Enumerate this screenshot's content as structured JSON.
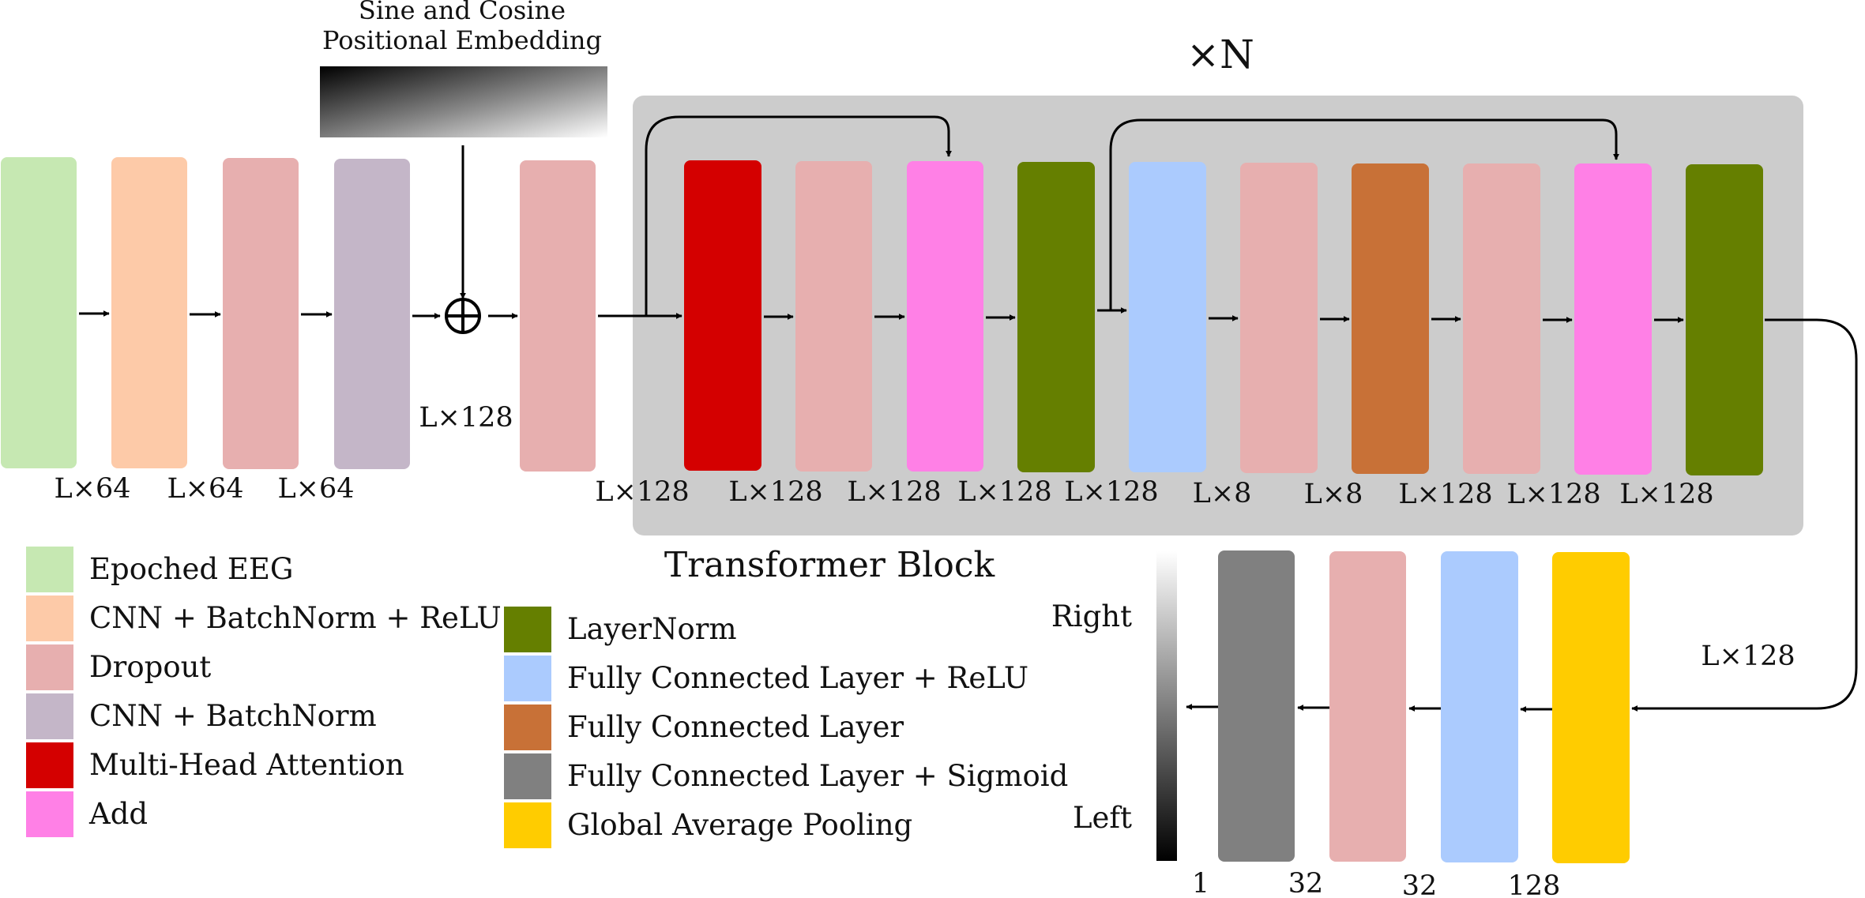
{
  "colors": {
    "epoched_eeg": "#c6e8b2",
    "cnn_bn_relu": "#fdcaa8",
    "dropout": "#e7afaf",
    "cnn_bn": "#c4b6c8",
    "mha": "#d40000",
    "add": "#ff80e6",
    "layernorm": "#657f00",
    "fc_relu": "#abcbfe",
    "fc": "#c87137",
    "fc_sigmoid": "#808080",
    "gap": "#ffcc00",
    "transformer_bg": "#cccccc",
    "arrow": "#000000"
  },
  "embedding": {
    "title_line1": "Sine and Cosine",
    "title_line2": "Positional Embedding"
  },
  "transformer": {
    "repeat_label": "×N",
    "block_label": "Transformer Block"
  },
  "dims": {
    "top": [
      "L×64",
      "L×64",
      "L×64",
      "L×128",
      "L×128",
      "L×128",
      "L×128",
      "L×128",
      "L×128",
      "L×8",
      "L×8",
      "L×128",
      "L×128",
      "L×128"
    ],
    "right": "L×128",
    "bottom": [
      "1",
      "32",
      "32",
      "128"
    ]
  },
  "output": {
    "right_label": "Right",
    "left_label": "Left"
  },
  "legend_left": [
    {
      "color": "epoched_eeg",
      "label": "Epoched EEG"
    },
    {
      "color": "cnn_bn_relu",
      "label": "CNN + BatchNorm + ReLU"
    },
    {
      "color": "dropout",
      "label": "Dropout"
    },
    {
      "color": "cnn_bn",
      "label": "CNN + BatchNorm"
    },
    {
      "color": "mha",
      "label": "Multi-Head Attention"
    },
    {
      "color": "add",
      "label": "Add"
    }
  ],
  "legend_right": [
    {
      "color": "layernorm",
      "label": "LayerNorm"
    },
    {
      "color": "fc_relu",
      "label": "Fully Connected Layer + ReLU"
    },
    {
      "color": "fc",
      "label": "Fully Connected Layer"
    },
    {
      "color": "fc_sigmoid",
      "label": "Fully Connected Layer + Sigmoid"
    },
    {
      "color": "gap",
      "label": "Global Average Pooling"
    }
  ]
}
